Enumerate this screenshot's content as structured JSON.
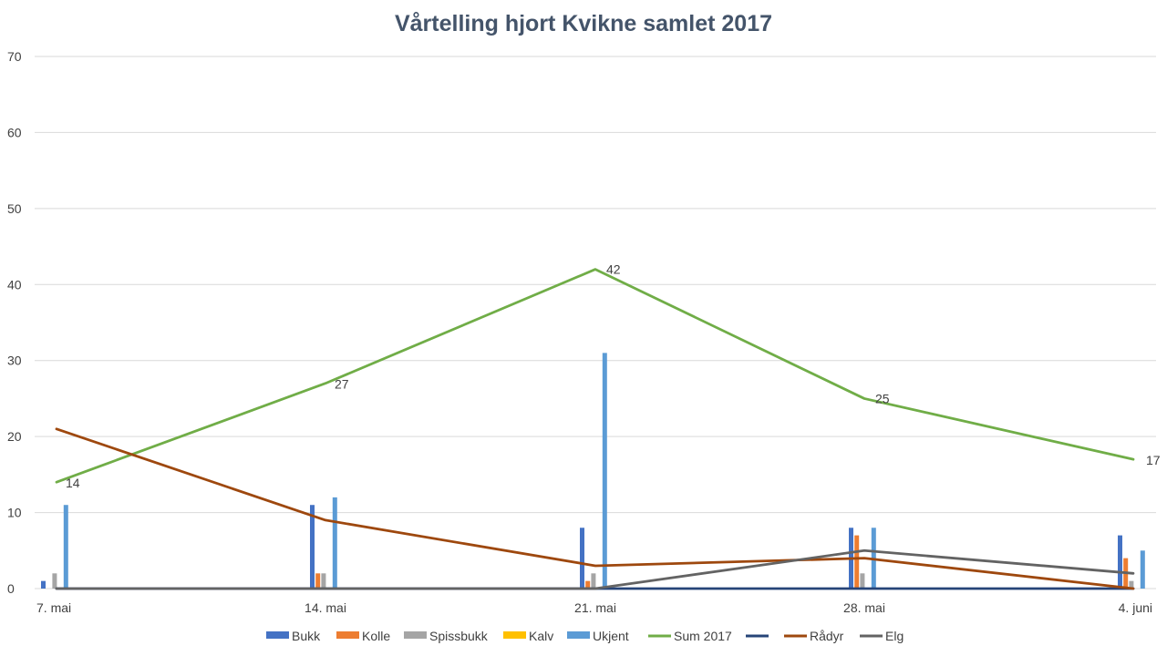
{
  "chart_data": {
    "type": "bar",
    "title": "Vårtelling hjort Kvikne samlet 2017",
    "categories": [
      "7. mai",
      "14. mai",
      "21. mai",
      "28. mai",
      "4. juni"
    ],
    "ylim": [
      0,
      70
    ],
    "yticks": [
      0,
      10,
      20,
      30,
      40,
      50,
      60,
      70
    ],
    "grid": true,
    "legend_position": "bottom",
    "bar_series": [
      {
        "name": "Bukk",
        "color": "#4472C4",
        "values": [
          1,
          11,
          8,
          8,
          7
        ]
      },
      {
        "name": "Kolle",
        "color": "#ED7D31",
        "values": [
          0,
          2,
          1,
          7,
          4
        ]
      },
      {
        "name": "Spissbukk",
        "color": "#A5A5A5",
        "values": [
          2,
          2,
          2,
          2,
          1
        ]
      },
      {
        "name": "Kalv",
        "color": "#FFC000",
        "values": [
          0,
          0,
          0,
          0,
          0
        ]
      },
      {
        "name": "Ukjent",
        "color": "#5B9BD5",
        "values": [
          11,
          12,
          31,
          8,
          5
        ]
      }
    ],
    "line_series": [
      {
        "name": "Sum 2017",
        "color": "#70AD47",
        "values": [
          14,
          27,
          42,
          25,
          17
        ],
        "data_labels": true
      },
      {
        "name": "",
        "color": "#264478",
        "values": [
          0,
          0,
          0,
          0,
          0
        ],
        "data_labels": false
      },
      {
        "name": "Rådyr",
        "color": "#9E480E",
        "values": [
          21,
          9,
          3,
          4,
          0
        ],
        "data_labels": false
      },
      {
        "name": "Elg",
        "color": "#636363",
        "values": [
          0,
          0,
          0,
          5,
          2
        ],
        "data_labels": false
      }
    ],
    "legend_order": [
      {
        "name": "Bukk",
        "kind": "bar",
        "color": "#4472C4"
      },
      {
        "name": "Kolle",
        "kind": "bar",
        "color": "#ED7D31"
      },
      {
        "name": "Spissbukk",
        "kind": "bar",
        "color": "#A5A5A5"
      },
      {
        "name": "Kalv",
        "kind": "bar",
        "color": "#FFC000"
      },
      {
        "name": "Ukjent",
        "kind": "bar",
        "color": "#5B9BD5"
      },
      {
        "name": "Sum 2017",
        "kind": "line",
        "color": "#70AD47"
      },
      {
        "name": "",
        "kind": "line",
        "color": "#264478"
      },
      {
        "name": "Rådyr",
        "kind": "line",
        "color": "#9E480E"
      },
      {
        "name": "Elg",
        "kind": "line",
        "color": "#636363"
      }
    ]
  }
}
